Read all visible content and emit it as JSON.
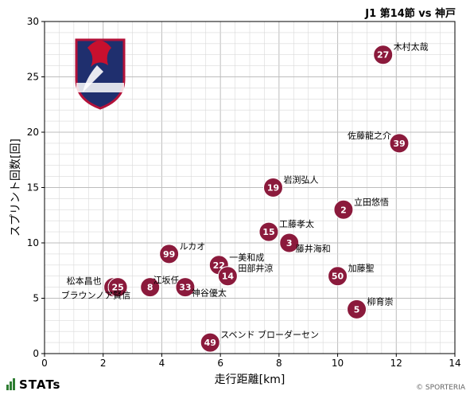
{
  "header": {
    "title": "J1 第14節 vs 神戸"
  },
  "footer": {
    "brand": "STATs",
    "credit": "© SPORTERIA"
  },
  "logo": {
    "icon": "fagiano-okayama-crest"
  },
  "colors": {
    "marker": "#8b1a3c",
    "grid": "#d9d9d9",
    "axis": "#000000"
  },
  "chart_data": {
    "type": "scatter",
    "xlabel": "走行距離[km]",
    "ylabel": "スプリント回数[回]",
    "xlim": [
      0,
      14
    ],
    "ylim": [
      0,
      30
    ],
    "xticks": [
      0,
      2,
      4,
      6,
      8,
      10,
      12,
      14
    ],
    "yticks": [
      0,
      5,
      10,
      15,
      20,
      25,
      30
    ],
    "grid": true,
    "points": [
      {
        "num": "27",
        "name": "木村太哉",
        "x": 11.55,
        "y": 27,
        "anchor": "right"
      },
      {
        "num": "39",
        "name": "佐藤龍之介",
        "x": 12.1,
        "y": 19,
        "anchor": "above-left"
      },
      {
        "num": "19",
        "name": "岩渕弘人",
        "x": 7.8,
        "y": 15,
        "anchor": "right"
      },
      {
        "num": "2",
        "name": "立田悠悟",
        "x": 10.2,
        "y": 13,
        "anchor": "right"
      },
      {
        "num": "15",
        "name": "工藤孝太",
        "x": 7.65,
        "y": 11,
        "anchor": "right"
      },
      {
        "num": "3",
        "name": "藤井海和",
        "x": 8.35,
        "y": 10,
        "anchor": "below-right"
      },
      {
        "num": "99",
        "name": "ルカオ",
        "x": 4.25,
        "y": 9,
        "anchor": "right"
      },
      {
        "num": "22",
        "name": "一美和成",
        "x": 5.95,
        "y": 8,
        "anchor": "right"
      },
      {
        "num": "14",
        "name": "田部井涼",
        "x": 6.25,
        "y": 7,
        "anchor": "right"
      },
      {
        "num": "50",
        "name": "加藤聖",
        "x": 10.0,
        "y": 7,
        "anchor": "right"
      },
      {
        "num": "24",
        "name": "松本昌也",
        "x": 2.35,
        "y": 6,
        "anchor": "left"
      },
      {
        "num": "25",
        "name": "ブラウンノア賢信",
        "x": 2.5,
        "y": 6,
        "anchor": "below-left"
      },
      {
        "num": "8",
        "name": "江坂任",
        "x": 3.6,
        "y": 6,
        "anchor": "above-right"
      },
      {
        "num": "33",
        "name": "神谷優太",
        "x": 4.8,
        "y": 6,
        "anchor": "below-right"
      },
      {
        "num": "5",
        "name": "柳育崇",
        "x": 10.65,
        "y": 4,
        "anchor": "right"
      },
      {
        "num": "49",
        "name": "スベンド ブローダーセン",
        "x": 5.65,
        "y": 1,
        "anchor": "right"
      }
    ]
  }
}
